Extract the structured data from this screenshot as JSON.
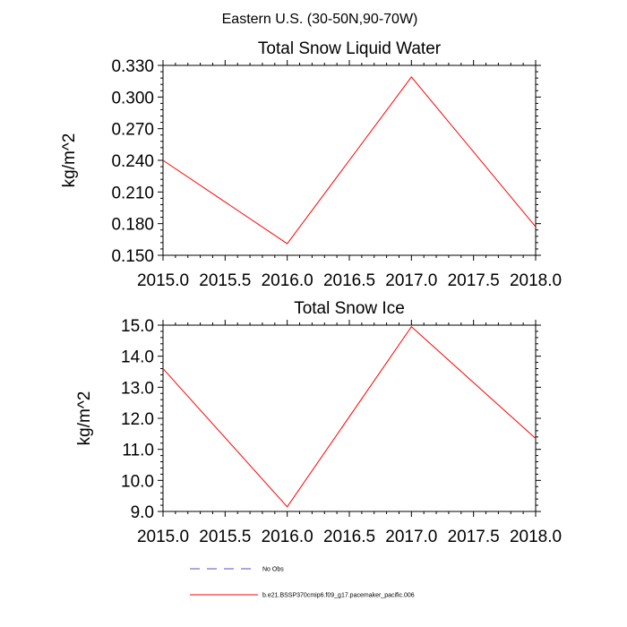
{
  "figure": {
    "title": "Eastern U.S. (30-50N,90-70W)"
  },
  "colors": {
    "series_line": "#ff0000",
    "no_obs_line": "#5050c8",
    "axis": "#000000",
    "background": "#ffffff"
  },
  "chart_data": [
    {
      "type": "line",
      "title": "Total Snow Liquid Water",
      "xlabel": "",
      "ylabel": "kg/m^2",
      "xlim": [
        2015.0,
        2018.0
      ],
      "ylim": [
        0.15,
        0.33
      ],
      "xticks": [
        2015.0,
        2015.5,
        2016.0,
        2016.5,
        2017.0,
        2017.5,
        2018.0
      ],
      "xtick_labels": [
        "2015.0",
        "2015.5",
        "2016.0",
        "2016.5",
        "2017.0",
        "2017.5",
        "2018.0"
      ],
      "yticks": [
        0.15,
        0.18,
        0.21,
        0.24,
        0.27,
        0.3,
        0.33
      ],
      "ytick_labels": [
        "0.150",
        "0.180",
        "0.210",
        "0.240",
        "0.270",
        "0.300",
        "0.330"
      ],
      "grid": false,
      "series": [
        {
          "name": "b.e21.BSSP370cmip6.f09_g17.pacemaker_pacific.006",
          "x": [
            2015,
            2016,
            2017,
            2018
          ],
          "values": [
            0.24,
            0.161,
            0.319,
            0.177
          ]
        }
      ]
    },
    {
      "type": "line",
      "title": "Total Snow Ice",
      "xlabel": "",
      "ylabel": "kg/m^2",
      "xlim": [
        2015.0,
        2018.0
      ],
      "ylim": [
        9.0,
        15.0
      ],
      "xticks": [
        2015.0,
        2015.5,
        2016.0,
        2016.5,
        2017.0,
        2017.5,
        2018.0
      ],
      "xtick_labels": [
        "2015.0",
        "2015.5",
        "2016.0",
        "2016.5",
        "2017.0",
        "2017.5",
        "2018.0"
      ],
      "yticks": [
        9.0,
        10.0,
        11.0,
        12.0,
        13.0,
        14.0,
        15.0
      ],
      "ytick_labels": [
        "9.0",
        "10.0",
        "11.0",
        "12.0",
        "13.0",
        "14.0",
        "15.0"
      ],
      "grid": false,
      "series": [
        {
          "name": "b.e21.BSSP370cmip6.f09_g17.pacemaker_pacific.006",
          "x": [
            2015,
            2016,
            2017,
            2018
          ],
          "values": [
            13.6,
            9.15,
            14.95,
            11.35
          ]
        }
      ]
    }
  ],
  "legend": {
    "placement": "bottom",
    "items": [
      {
        "label": "No Obs",
        "style": "dashed",
        "color": "#5050c8"
      },
      {
        "label": "b.e21.BSSP370cmip6.f09_g17.pacemaker_pacific.006",
        "style": "solid",
        "color": "#ff0000"
      }
    ]
  }
}
